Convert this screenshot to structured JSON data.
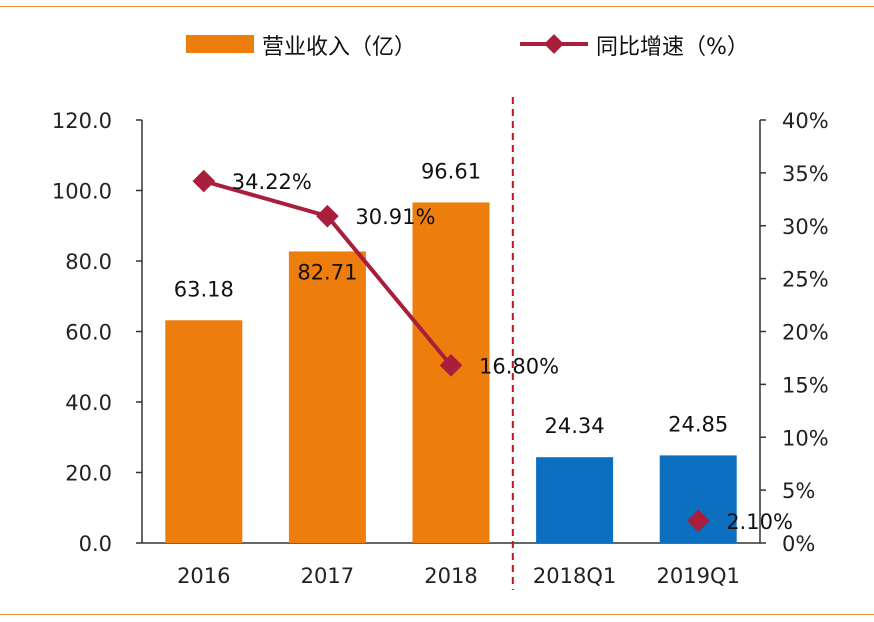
{
  "chart_data": {
    "type": "bar",
    "categories": [
      "2016",
      "2017",
      "2018",
      "2018Q1",
      "2019Q1"
    ],
    "series": [
      {
        "name": "营业收入（亿）",
        "axis": "left",
        "values": [
          63.18,
          82.71,
          96.61,
          24.34,
          24.85
        ],
        "value_labels": [
          "63.18",
          "82.71",
          "96.61",
          "24.34",
          "24.85"
        ],
        "colors": [
          "#ed7d0c",
          "#ed7d0c",
          "#ed7d0c",
          "#0d6fbf",
          "#0d6fbf"
        ]
      },
      {
        "name": "同比增速（%）",
        "type": "line",
        "axis": "right",
        "values": [
          34.22,
          30.91,
          16.8,
          null,
          2.1
        ],
        "value_labels": [
          "34.22%",
          "30.91%",
          "16.80%",
          "",
          "2.10%"
        ],
        "color": "#a81e3b"
      }
    ],
    "left_axis": {
      "ylim": [
        0,
        120
      ],
      "ticks": [
        0,
        20,
        40,
        60,
        80,
        100,
        120
      ],
      "tick_labels": [
        "0.0",
        "20.0",
        "40.0",
        "60.0",
        "80.0",
        "100.0",
        "120.0"
      ]
    },
    "right_axis": {
      "ylim": [
        0,
        40
      ],
      "ticks": [
        0,
        5,
        10,
        15,
        20,
        25,
        30,
        35,
        40
      ],
      "tick_labels": [
        "0%",
        "5%",
        "10%",
        "15%",
        "20%",
        "25%",
        "30%",
        "35%",
        "40%"
      ]
    },
    "divider": {
      "after_category": "2018",
      "style": "dashed",
      "color": "#c0151c"
    },
    "legend_position": "top",
    "grid": false,
    "title": ""
  }
}
